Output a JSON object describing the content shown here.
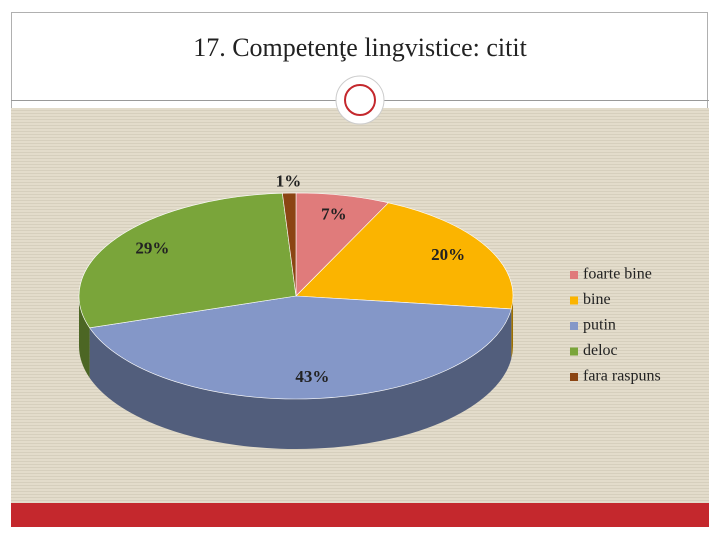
{
  "chart_data": {
    "type": "pie",
    "title": "17. Competenţe lingvistice: citit",
    "categories": [
      "foarte bine",
      "bine",
      "putin",
      "deloc",
      "fara raspuns"
    ],
    "values": [
      7,
      20,
      43,
      29,
      1
    ],
    "value_labels": [
      "7%",
      "20%",
      "43%",
      "29%",
      "1%"
    ],
    "colors": [
      "#e07b7b",
      "#fbb400",
      "#8497c8",
      "#7aa53a",
      "#8b4513"
    ],
    "legend": "right"
  }
}
